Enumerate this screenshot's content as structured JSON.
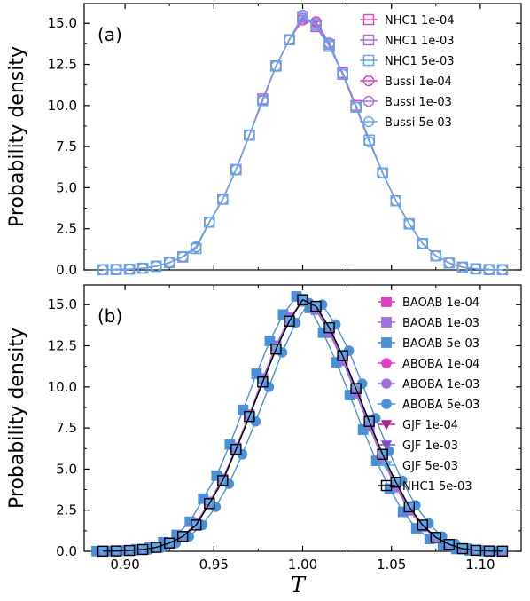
{
  "figure": {
    "ylabel": "Probability density",
    "xlabel": "T",
    "x_ticks": [
      "0.90",
      "0.95",
      "1.00",
      "1.05",
      "1.10"
    ],
    "y_ticks": [
      "0.0",
      "2.5",
      "5.0",
      "7.5",
      "10.0",
      "12.5",
      "15.0"
    ]
  },
  "chart_data": [
    {
      "type": "line",
      "panel_label": "(a)",
      "xlabel": "",
      "ylabel": "Probability density",
      "xlim": [
        0.877,
        1.123
      ],
      "ylim": [
        0,
        16.2
      ],
      "legend_position": "top-right",
      "x": [
        0.8875,
        0.895,
        0.9025,
        0.91,
        0.9175,
        0.925,
        0.9325,
        0.94,
        0.9475,
        0.955,
        0.9625,
        0.97,
        0.9775,
        0.985,
        0.9925,
        1.0,
        1.0075,
        1.015,
        1.0225,
        1.03,
        1.0375,
        1.045,
        1.0525,
        1.06,
        1.0675,
        1.075,
        1.0825,
        1.09,
        1.0975,
        1.105,
        1.1125
      ],
      "series": [
        {
          "name": "NHC1 1e-04",
          "color": "#e040c0",
          "marker": "square-open",
          "values": [
            0.01,
            0.02,
            0.04,
            0.1,
            0.22,
            0.45,
            0.78,
            1.3,
            2.9,
            4.3,
            6.1,
            8.2,
            10.4,
            12.4,
            14.0,
            15.4,
            14.8,
            13.6,
            12.0,
            10.0,
            7.9,
            5.9,
            4.2,
            2.8,
            1.6,
            0.85,
            0.42,
            0.16,
            0.06,
            0.02,
            0.01
          ]
        },
        {
          "name": "NHC1 1e-03",
          "color": "#a070e0",
          "marker": "square-open",
          "values": [
            0.01,
            0.02,
            0.04,
            0.1,
            0.22,
            0.44,
            0.8,
            1.3,
            2.9,
            4.3,
            6.1,
            8.2,
            10.3,
            12.4,
            14.0,
            15.4,
            14.9,
            13.7,
            11.9,
            9.9,
            7.9,
            5.9,
            4.2,
            2.8,
            1.6,
            0.85,
            0.42,
            0.16,
            0.06,
            0.02,
            0.01
          ]
        },
        {
          "name": "NHC1 5e-03",
          "color": "#5fa8e8",
          "marker": "square-open",
          "values": [
            0.01,
            0.02,
            0.04,
            0.1,
            0.22,
            0.44,
            0.8,
            1.3,
            2.9,
            4.3,
            6.1,
            8.2,
            10.3,
            12.4,
            14.0,
            15.3,
            14.9,
            13.6,
            11.9,
            9.9,
            7.9,
            5.9,
            4.2,
            2.8,
            1.6,
            0.85,
            0.42,
            0.16,
            0.06,
            0.02,
            0.01
          ]
        },
        {
          "name": "Bussi 1e-04",
          "color": "#e040c0",
          "marker": "circle-open",
          "values": [
            0.01,
            0.02,
            0.04,
            0.1,
            0.22,
            0.45,
            0.8,
            1.4,
            2.9,
            4.3,
            6.1,
            8.2,
            10.3,
            12.4,
            14.0,
            15.2,
            15.1,
            13.8,
            11.9,
            9.9,
            7.8,
            5.9,
            4.2,
            2.8,
            1.6,
            0.85,
            0.42,
            0.16,
            0.06,
            0.02,
            0.01
          ]
        },
        {
          "name": "Bussi 1e-03",
          "color": "#a070e0",
          "marker": "circle-open",
          "values": [
            0.01,
            0.02,
            0.04,
            0.1,
            0.22,
            0.45,
            0.8,
            1.4,
            2.9,
            4.3,
            6.1,
            8.2,
            10.3,
            12.4,
            14.0,
            15.3,
            15.0,
            13.8,
            11.9,
            9.9,
            7.8,
            5.9,
            4.2,
            2.8,
            1.6,
            0.85,
            0.42,
            0.16,
            0.06,
            0.02,
            0.01
          ]
        },
        {
          "name": "Bussi 5e-03",
          "color": "#5fa8e8",
          "marker": "circle-open",
          "values": [
            0.01,
            0.02,
            0.04,
            0.1,
            0.22,
            0.45,
            0.8,
            1.4,
            2.9,
            4.3,
            6.1,
            8.2,
            10.3,
            12.4,
            14.0,
            15.5,
            14.9,
            13.7,
            11.9,
            9.9,
            7.8,
            5.9,
            4.2,
            2.8,
            1.6,
            0.85,
            0.42,
            0.16,
            0.06,
            0.02,
            0.01
          ]
        }
      ]
    },
    {
      "type": "line",
      "panel_label": "(b)",
      "xlabel": "T",
      "ylabel": "Probability density",
      "xlim": [
        0.877,
        1.123
      ],
      "ylim": [
        0,
        16.2
      ],
      "legend_position": "top-right",
      "series": [
        {
          "name": "BAOAB 1e-04",
          "color": "#e040c0",
          "marker": "square-filled",
          "x": [
            0.8875,
            0.895,
            0.9025,
            0.91,
            0.9175,
            0.925,
            0.9325,
            0.94,
            0.9475,
            0.955,
            0.9625,
            0.97,
            0.9775,
            0.985,
            0.9925,
            1.0,
            1.0075,
            1.015,
            1.0225,
            1.03,
            1.0375,
            1.045,
            1.0525,
            1.06,
            1.0675,
            1.075,
            1.0825,
            1.09,
            1.0975,
            1.105,
            1.1125
          ],
          "values": [
            0.01,
            0.02,
            0.05,
            0.11,
            0.24,
            0.5,
            0.9,
            1.7,
            3.0,
            4.4,
            6.3,
            8.3,
            10.5,
            12.5,
            14.2,
            15.2,
            14.7,
            13.3,
            11.6,
            9.6,
            7.6,
            5.6,
            3.9,
            2.5,
            1.5,
            0.8,
            0.38,
            0.15,
            0.06,
            0.02,
            0.01
          ]
        },
        {
          "name": "BAOAB 1e-03",
          "color": "#a070e0",
          "marker": "square-filled",
          "x": [
            0.8875,
            0.895,
            0.9025,
            0.91,
            0.9175,
            0.925,
            0.9325,
            0.94,
            0.9475,
            0.955,
            0.9625,
            0.97,
            0.9775,
            0.985,
            0.9925,
            1.0,
            1.0075,
            1.015,
            1.0225,
            1.03,
            1.0375,
            1.045,
            1.0525,
            1.06,
            1.0675,
            1.075,
            1.0825,
            1.09,
            1.0975,
            1.105,
            1.1125
          ],
          "values": [
            0.01,
            0.02,
            0.05,
            0.11,
            0.24,
            0.5,
            0.9,
            1.7,
            3.0,
            4.4,
            6.3,
            8.3,
            10.5,
            12.5,
            14.2,
            15.2,
            14.7,
            13.3,
            11.6,
            9.6,
            7.6,
            5.6,
            3.9,
            2.5,
            1.5,
            0.8,
            0.38,
            0.15,
            0.06,
            0.02,
            0.01
          ]
        },
        {
          "name": "BAOAB 5e-03",
          "color": "#4a90d8",
          "marker": "square-filled",
          "x": [
            0.884,
            0.8915,
            0.899,
            0.9065,
            0.914,
            0.9215,
            0.929,
            0.9365,
            0.944,
            0.9515,
            0.959,
            0.9665,
            0.974,
            0.9815,
            0.989,
            0.9965,
            1.004,
            1.0115,
            1.019,
            1.0265,
            1.034,
            1.0415,
            1.049,
            1.0565,
            1.064,
            1.0715,
            1.079,
            1.0865,
            1.094,
            1.1015,
            1.109
          ],
          "values": [
            0.01,
            0.02,
            0.05,
            0.12,
            0.26,
            0.55,
            1.0,
            1.8,
            3.2,
            4.6,
            6.5,
            8.6,
            10.8,
            12.8,
            14.4,
            15.5,
            14.8,
            13.3,
            11.5,
            9.5,
            7.4,
            5.5,
            3.8,
            2.4,
            1.4,
            0.75,
            0.36,
            0.14,
            0.05,
            0.02,
            0.01
          ]
        },
        {
          "name": "ABOBA 1e-04",
          "color": "#e040c0",
          "marker": "circle-filled",
          "x": [
            0.8875,
            0.895,
            0.9025,
            0.91,
            0.9175,
            0.925,
            0.9325,
            0.94,
            0.9475,
            0.955,
            0.9625,
            0.97,
            0.9775,
            0.985,
            0.9925,
            1.0,
            1.0075,
            1.015,
            1.0225,
            1.03,
            1.0375,
            1.045,
            1.0525,
            1.06,
            1.0675,
            1.075,
            1.0825,
            1.09,
            1.0975,
            1.105,
            1.1125
          ],
          "values": [
            0.01,
            0.02,
            0.05,
            0.11,
            0.24,
            0.5,
            0.9,
            1.7,
            3.0,
            4.4,
            6.3,
            8.3,
            10.4,
            12.4,
            14.1,
            15.3,
            14.8,
            13.4,
            11.7,
            9.7,
            7.7,
            5.7,
            4.0,
            2.6,
            1.5,
            0.8,
            0.4,
            0.16,
            0.06,
            0.02,
            0.01
          ]
        },
        {
          "name": "ABOBA 1e-03",
          "color": "#a070e0",
          "marker": "circle-filled",
          "x": [
            0.8875,
            0.895,
            0.9025,
            0.91,
            0.9175,
            0.925,
            0.9325,
            0.94,
            0.9475,
            0.955,
            0.9625,
            0.97,
            0.9775,
            0.985,
            0.9925,
            1.0,
            1.0075,
            1.015,
            1.0225,
            1.03,
            1.0375,
            1.045,
            1.0525,
            1.06,
            1.0675,
            1.075,
            1.0825,
            1.09,
            1.0975,
            1.105,
            1.1125
          ],
          "values": [
            0.01,
            0.02,
            0.05,
            0.11,
            0.24,
            0.5,
            0.9,
            1.7,
            3.0,
            4.4,
            6.3,
            8.3,
            10.4,
            12.4,
            14.1,
            15.3,
            14.8,
            13.4,
            11.7,
            9.7,
            7.7,
            5.7,
            4.0,
            2.6,
            1.5,
            0.8,
            0.4,
            0.16,
            0.06,
            0.02,
            0.01
          ]
        },
        {
          "name": "ABOBA 5e-03",
          "color": "#4a90d8",
          "marker": "circle-filled",
          "x": [
            0.891,
            0.8985,
            0.906,
            0.9135,
            0.921,
            0.9285,
            0.936,
            0.9435,
            0.951,
            0.9585,
            0.966,
            0.9735,
            0.981,
            0.9885,
            0.996,
            1.0035,
            1.011,
            1.0185,
            1.026,
            1.0335,
            1.041,
            1.0485,
            1.056,
            1.0635,
            1.071,
            1.0785,
            1.086,
            1.0935,
            1.101,
            1.1085
          ],
          "values": [
            0.01,
            0.02,
            0.05,
            0.11,
            0.24,
            0.5,
            0.9,
            1.6,
            2.7,
            4.1,
            5.9,
            7.9,
            10.0,
            12.1,
            13.9,
            15.1,
            15.0,
            13.8,
            12.2,
            10.2,
            8.1,
            6.1,
            4.3,
            2.8,
            1.7,
            0.9,
            0.45,
            0.18,
            0.07,
            0.02
          ]
        },
        {
          "name": "GJF 1e-04",
          "color": "#b0208a",
          "marker": "triangle-down",
          "x": [
            0.8875,
            0.895,
            0.9025,
            0.91,
            0.9175,
            0.925,
            0.9325,
            0.94,
            0.9475,
            0.955,
            0.9625,
            0.97,
            0.9775,
            0.985,
            0.9925,
            1.0,
            1.0075,
            1.015,
            1.0225,
            1.03,
            1.0375,
            1.045,
            1.0525,
            1.06,
            1.0675,
            1.075,
            1.0825,
            1.09,
            1.0975,
            1.105,
            1.1125
          ],
          "values": [
            0.01,
            0.02,
            0.05,
            0.11,
            0.24,
            0.5,
            0.9,
            1.6,
            2.9,
            4.3,
            6.2,
            8.2,
            10.3,
            12.3,
            14.0,
            15.3,
            14.9,
            13.6,
            11.9,
            9.9,
            7.9,
            5.9,
            4.2,
            2.7,
            1.6,
            0.85,
            0.42,
            0.16,
            0.06,
            0.02,
            0.01
          ]
        },
        {
          "name": "GJF 1e-03",
          "color": "#7a50b8",
          "marker": "triangle-down",
          "x": [
            0.8875,
            0.895,
            0.9025,
            0.91,
            0.9175,
            0.925,
            0.9325,
            0.94,
            0.9475,
            0.955,
            0.9625,
            0.97,
            0.9775,
            0.985,
            0.9925,
            1.0,
            1.0075,
            1.015,
            1.0225,
            1.03,
            1.0375,
            1.045,
            1.0525,
            1.06,
            1.0675,
            1.075,
            1.0825,
            1.09,
            1.0975,
            1.105,
            1.1125
          ],
          "values": [
            0.01,
            0.02,
            0.05,
            0.11,
            0.24,
            0.5,
            0.9,
            1.6,
            2.9,
            4.3,
            6.2,
            8.2,
            10.3,
            12.3,
            14.0,
            15.3,
            14.9,
            13.6,
            11.9,
            9.9,
            7.9,
            5.9,
            4.2,
            2.7,
            1.6,
            0.85,
            0.42,
            0.16,
            0.06,
            0.02,
            0.01
          ]
        },
        {
          "name": "GJF 5e-03",
          "color": "#5fa8e8",
          "marker": "triangle-down",
          "x": [
            0.8875,
            0.895,
            0.9025,
            0.91,
            0.9175,
            0.925,
            0.9325,
            0.94,
            0.9475,
            0.955,
            0.9625,
            0.97,
            0.9775,
            0.985,
            0.9925,
            1.0,
            1.0075,
            1.015,
            1.0225,
            1.03,
            1.0375,
            1.045,
            1.0525,
            1.06,
            1.0675,
            1.075,
            1.0825,
            1.09,
            1.0975,
            1.105,
            1.1125
          ],
          "values": [
            0.01,
            0.02,
            0.05,
            0.11,
            0.24,
            0.5,
            0.9,
            1.6,
            2.9,
            4.3,
            6.2,
            8.2,
            10.3,
            12.3,
            14.0,
            15.3,
            14.9,
            13.6,
            11.9,
            9.9,
            7.9,
            5.9,
            4.2,
            2.7,
            1.6,
            0.85,
            0.42,
            0.16,
            0.06,
            0.02,
            0.01
          ]
        },
        {
          "name": "NHC1 5e-03",
          "color": "#000000",
          "marker": "square-open",
          "x": [
            0.8875,
            0.895,
            0.9025,
            0.91,
            0.9175,
            0.925,
            0.9325,
            0.94,
            0.9475,
            0.955,
            0.9625,
            0.97,
            0.9775,
            0.985,
            0.9925,
            1.0,
            1.0075,
            1.015,
            1.0225,
            1.03,
            1.0375,
            1.045,
            1.0525,
            1.06,
            1.0675,
            1.075,
            1.0825,
            1.09,
            1.0975,
            1.105,
            1.1125
          ],
          "values": [
            0.01,
            0.02,
            0.05,
            0.11,
            0.24,
            0.5,
            0.9,
            1.6,
            2.9,
            4.3,
            6.2,
            8.2,
            10.3,
            12.3,
            14.0,
            15.3,
            14.9,
            13.6,
            11.9,
            9.9,
            7.9,
            5.9,
            4.2,
            2.7,
            1.6,
            0.85,
            0.42,
            0.16,
            0.06,
            0.02,
            0.01
          ]
        }
      ]
    }
  ]
}
